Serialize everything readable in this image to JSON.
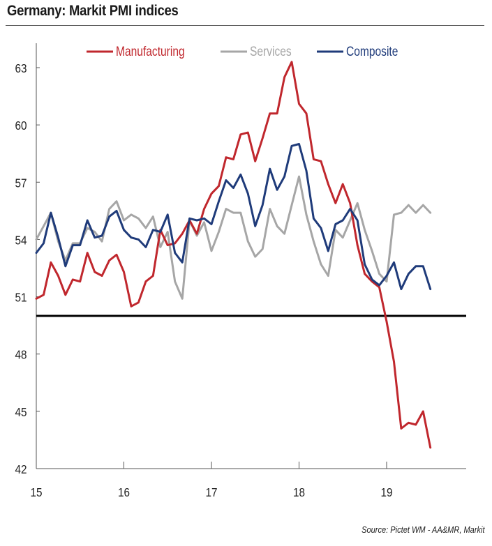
{
  "header": {
    "title": "Germany: Markit PMI indices"
  },
  "footer": {
    "source": "Source: Pictet WM - AA&MR, Markit"
  },
  "colors": {
    "manufacturing": "#c0272d",
    "services": "#a6a6a6",
    "composite": "#1f3b7a",
    "threshold": "#000000"
  },
  "chart_data": {
    "type": "line",
    "title": "Germany: Markit PMI indices",
    "xlabel": "",
    "ylabel": "",
    "xlim": [
      15,
      20
    ],
    "ylim": [
      42,
      65
    ],
    "x_ticks": [
      15,
      16,
      17,
      18,
      19
    ],
    "x_tick_labels": [
      "15",
      "16",
      "17",
      "18",
      "19"
    ],
    "y_ticks": [
      42,
      45,
      48,
      51,
      54,
      57,
      60,
      63
    ],
    "y_tick_labels": [
      "42",
      "45",
      "48",
      "51",
      "54",
      "57",
      "60",
      "63"
    ],
    "reference_line": {
      "value": 50
    },
    "legend": {
      "position": "top",
      "entries": [
        "Manufacturing",
        "Services",
        "Composite"
      ]
    },
    "x_step": 0.08333333,
    "x_start": 15,
    "series": [
      {
        "name": "Manufacturing",
        "color_key": "manufacturing",
        "values": [
          50.9,
          51.1,
          52.8,
          52.1,
          51.1,
          51.9,
          51.8,
          53.3,
          52.3,
          52.1,
          52.9,
          53.2,
          52.3,
          50.5,
          50.7,
          51.8,
          52.1,
          54.5,
          53.7,
          53.8,
          54.3,
          55.0,
          54.3,
          55.6,
          56.4,
          56.8,
          58.3,
          58.2,
          59.5,
          59.6,
          58.1,
          59.3,
          60.6,
          60.6,
          62.5,
          63.3,
          61.1,
          60.6,
          58.2,
          58.1,
          56.9,
          55.9,
          56.9,
          55.9,
          53.7,
          52.2,
          51.8,
          51.5,
          49.7,
          47.6,
          44.1,
          44.4,
          44.3,
          45.0,
          43.1
        ]
      },
      {
        "name": "Services",
        "color_key": "services",
        "values": [
          54.0,
          54.7,
          55.4,
          53.9,
          52.9,
          53.8,
          53.8,
          54.6,
          54.4,
          53.9,
          55.6,
          56.0,
          55.0,
          55.3,
          55.1,
          54.6,
          55.2,
          53.6,
          54.4,
          51.8,
          50.9,
          55.0,
          54.2,
          54.9,
          53.4,
          54.4,
          55.6,
          55.4,
          55.4,
          53.9,
          53.1,
          53.5,
          55.6,
          54.7,
          54.3,
          55.8,
          57.3,
          55.3,
          53.9,
          52.7,
          52.1,
          54.5,
          54.1,
          55.0,
          55.9,
          54.5,
          53.4,
          52.2,
          51.8,
          55.3,
          55.4,
          55.8,
          55.4,
          55.8,
          55.4
        ]
      },
      {
        "name": "Composite",
        "color_key": "composite",
        "values": [
          53.3,
          53.8,
          55.4,
          54.1,
          52.6,
          53.7,
          53.7,
          55.0,
          54.1,
          54.2,
          55.2,
          55.5,
          54.5,
          54.1,
          54.0,
          53.6,
          54.5,
          54.4,
          55.3,
          53.3,
          52.8,
          55.1,
          55.0,
          55.1,
          54.8,
          56.0,
          57.1,
          56.7,
          57.4,
          56.4,
          54.7,
          55.8,
          57.7,
          56.6,
          57.3,
          58.9,
          59.0,
          57.6,
          55.1,
          54.6,
          53.4,
          54.8,
          55.0,
          55.6,
          55.0,
          52.7,
          51.9,
          51.6,
          52.1,
          52.8,
          51.4,
          52.2,
          52.6,
          52.6,
          51.4
        ]
      }
    ]
  }
}
